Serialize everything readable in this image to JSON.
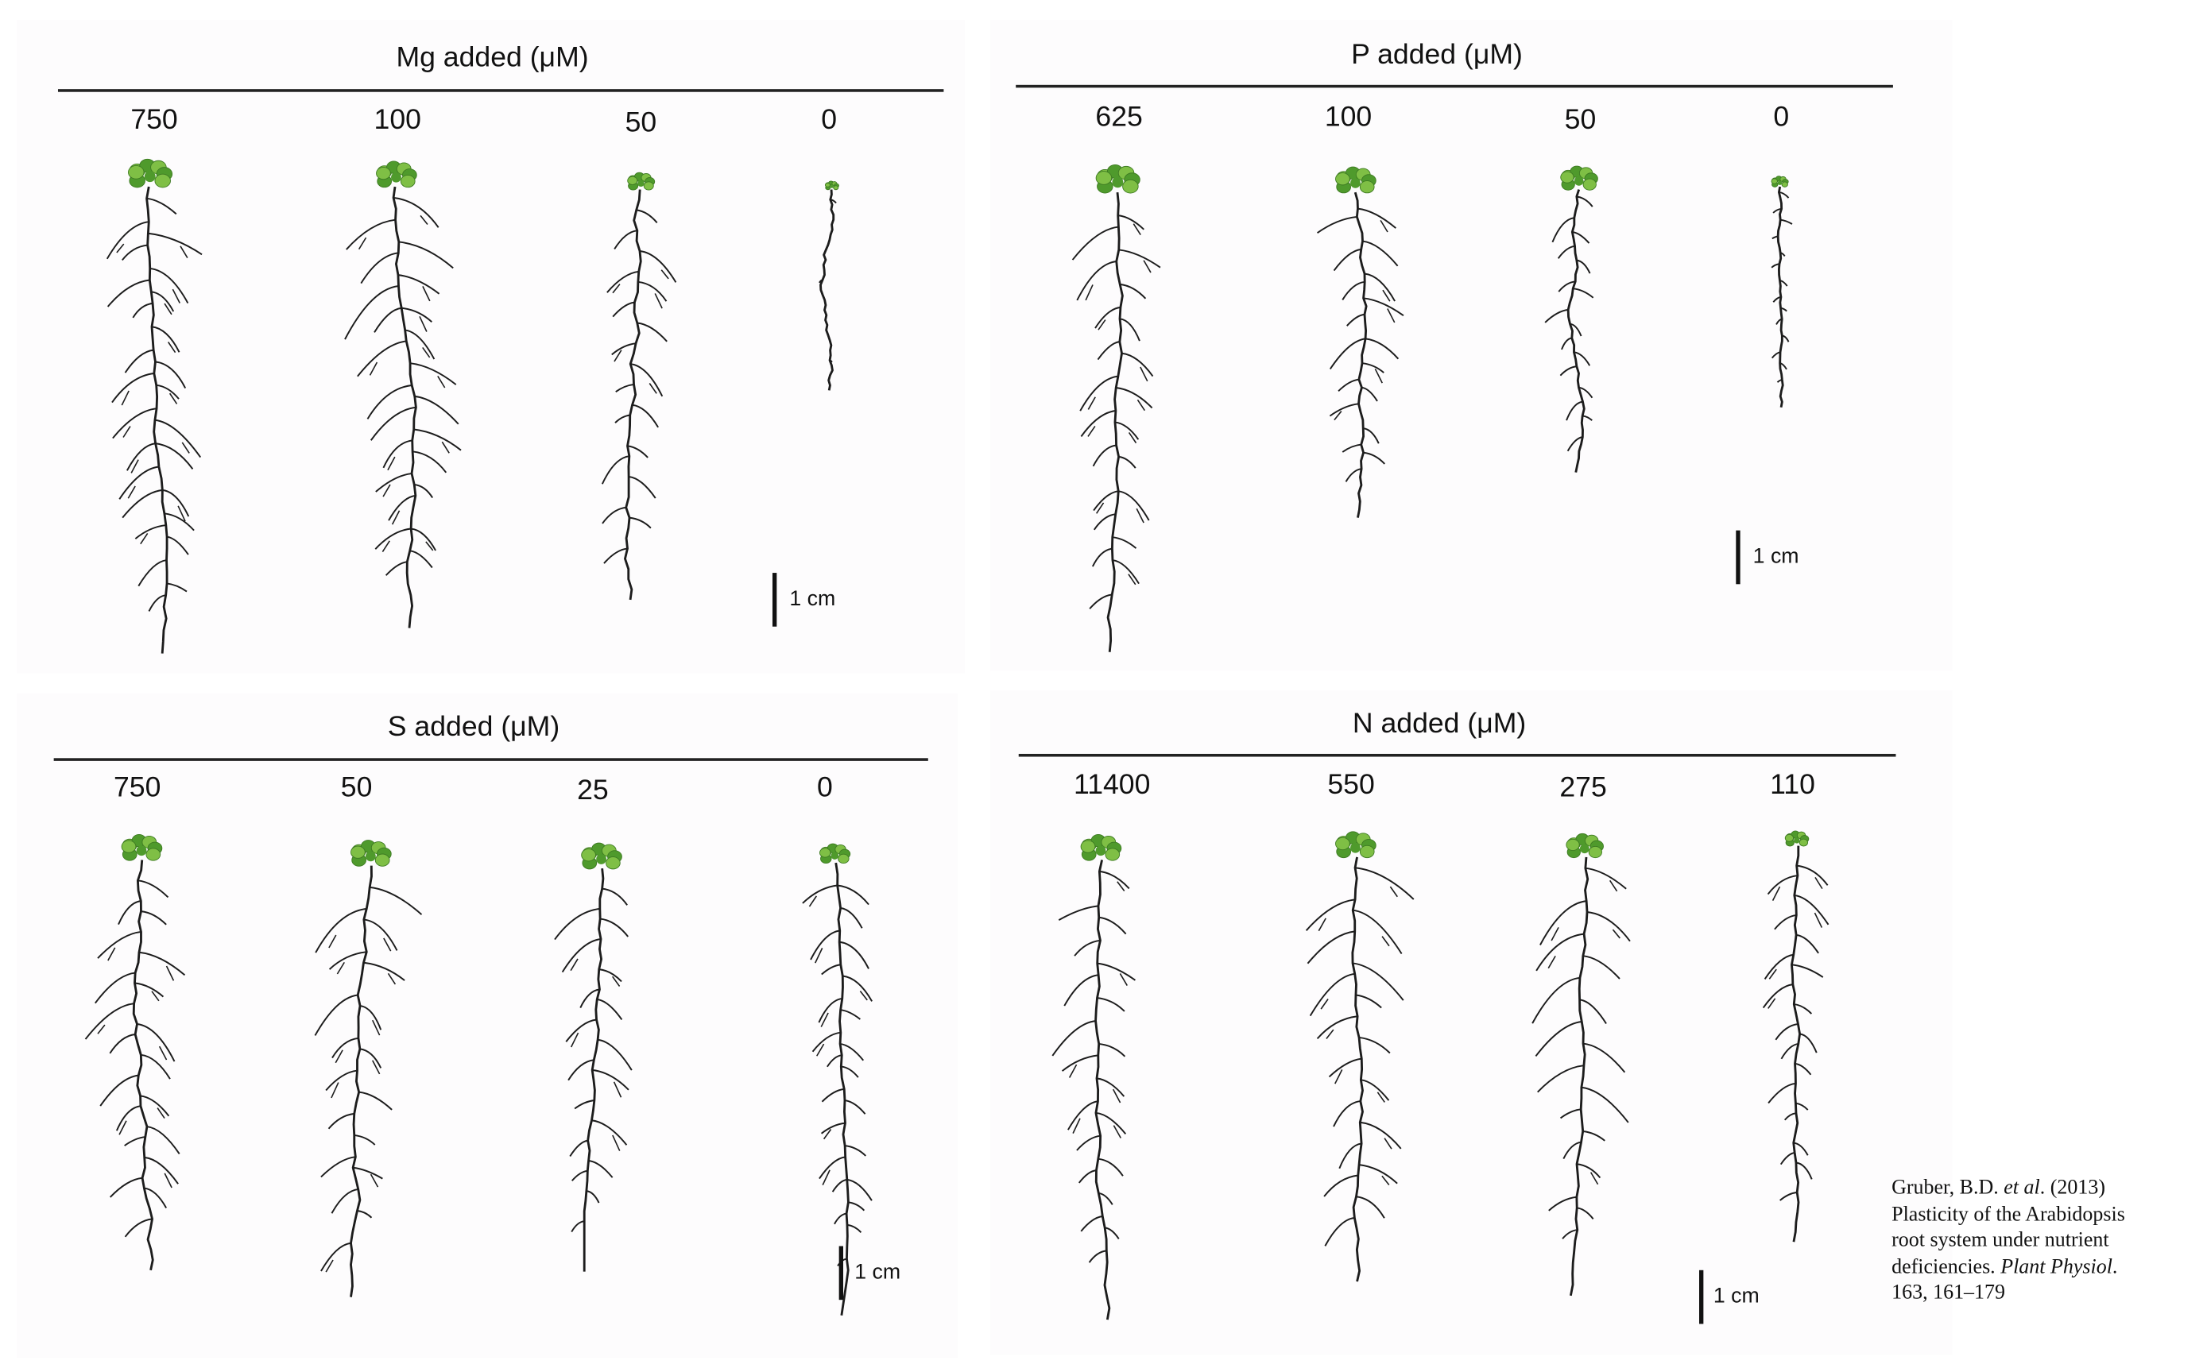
{
  "panels": [
    {
      "id": "mg",
      "title": "Mg added (μM)",
      "levels": [
        "750",
        "100",
        "50",
        "0"
      ],
      "scale_bar_label": "1 cm"
    },
    {
      "id": "p",
      "title": "P added (μM)",
      "levels": [
        "625",
        "100",
        "50",
        "0"
      ],
      "scale_bar_label": "1 cm"
    },
    {
      "id": "s",
      "title": "S added (μM)",
      "levels": [
        "750",
        "50",
        "25",
        "0"
      ],
      "scale_bar_label": "1 cm"
    },
    {
      "id": "n",
      "title": "N added (μM)",
      "levels": [
        "11400",
        "550",
        "275",
        "110"
      ],
      "scale_bar_label": "1 cm"
    }
  ],
  "citation": {
    "authors": "Gruber, B.D.",
    "et_al": "et al",
    "year": ". (2013)",
    "title_line1": "Plasticity of the Arabidopsis",
    "title_line2": "root system under nutrient",
    "title_line3": "deficiencies.",
    "journal": "Plant Physiol",
    "journal_end": ".",
    "volume_pages": "163, 161–179"
  },
  "colors": {
    "root": "#1c1c1c",
    "leaf_light": "#7fbf45",
    "leaf_dark": "#4f9a2c",
    "rule": "#222222"
  }
}
